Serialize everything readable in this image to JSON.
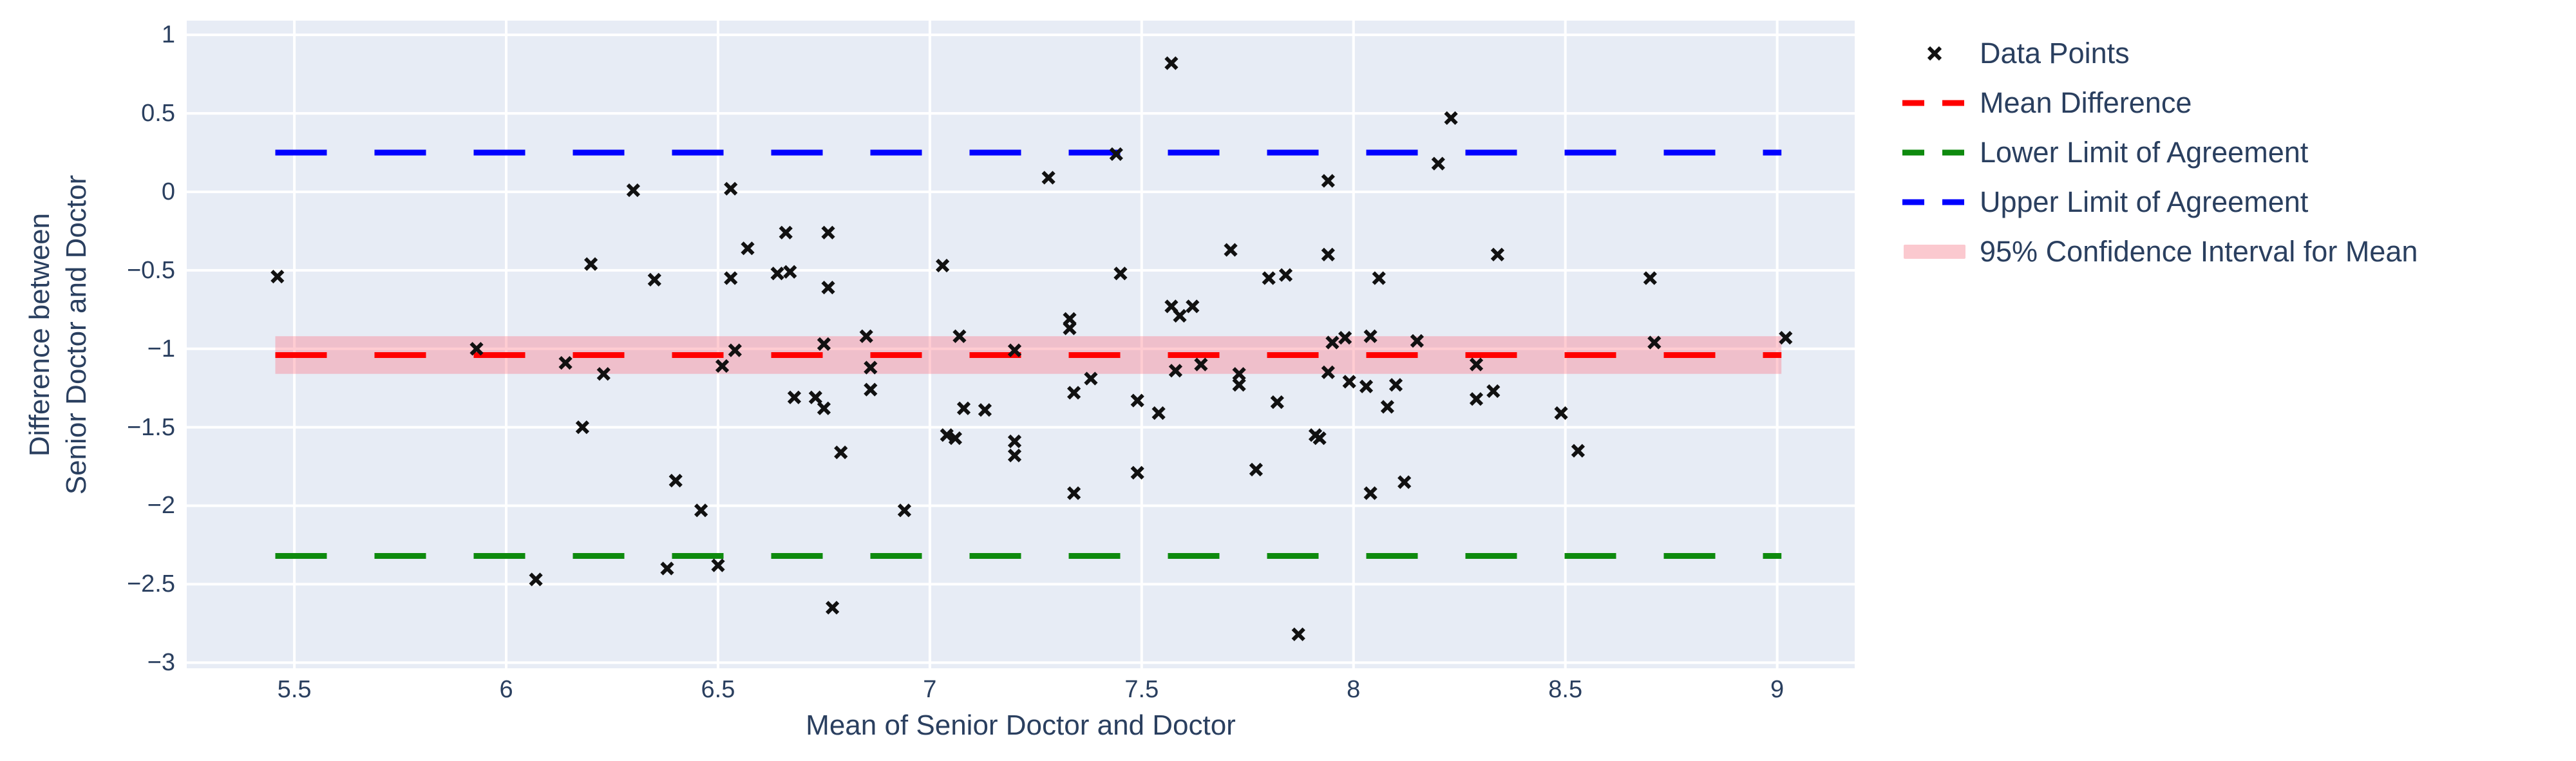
{
  "x_axis": {
    "title": "Mean of Senior Doctor and Doctor",
    "ticks": [
      {
        "label": "5.5",
        "value": 5.5
      },
      {
        "label": "6",
        "value": 6
      },
      {
        "label": "6.5",
        "value": 6.5
      },
      {
        "label": "7",
        "value": 7
      },
      {
        "label": "7.5",
        "value": 7.5
      },
      {
        "label": "8",
        "value": 8
      },
      {
        "label": "8.5",
        "value": 8.5
      },
      {
        "label": "9",
        "value": 9
      }
    ]
  },
  "y_axis": {
    "title_line1": "Difference between",
    "title_line2": "Senior Doctor and Doctor",
    "ticks": [
      {
        "label": "1",
        "value": 1
      },
      {
        "label": "0.5",
        "value": 0.5
      },
      {
        "label": "0",
        "value": 0
      },
      {
        "label": "−0.5",
        "value": -0.5
      },
      {
        "label": "−1",
        "value": -1
      },
      {
        "label": "−1.5",
        "value": -1.5
      },
      {
        "label": "−2",
        "value": -2
      },
      {
        "label": "−2.5",
        "value": -2.5
      },
      {
        "label": "−3",
        "value": -3
      }
    ]
  },
  "legend": {
    "position": "right",
    "items": [
      {
        "label": "Data Points",
        "type": "marker-x",
        "color": "#111111"
      },
      {
        "label": "Mean Difference",
        "type": "dash",
        "color": "#FF0000"
      },
      {
        "label": "Lower Limit of Agreement",
        "type": "dash",
        "color": "#0E8A0E"
      },
      {
        "label": "Upper Limit of Agreement",
        "type": "dash",
        "color": "#0000FF"
      },
      {
        "label": "95% Confidence Interval for Mean",
        "type": "band",
        "color": "#FBC9CF"
      }
    ]
  },
  "colors": {
    "plot_background": "#E7ECF5",
    "gridline": "#FFFFFF",
    "marker": "#111111",
    "mean_line": "#FF0000",
    "lower_loa_line": "#0E8A0E",
    "upper_loa_line": "#0000FF",
    "ci_band_fill": "rgba(255,110,125,0.35)",
    "text": "#2a3f5f"
  },
  "chart_data": {
    "type": "scatter",
    "title": "",
    "xlabel": "Mean of Senior Doctor and Doctor",
    "ylabel": "Difference between Senior Doctor and Doctor",
    "x_range": [
      5.246,
      9.183
    ],
    "y_range": [
      -3.036,
      1.091
    ],
    "grid": true,
    "legend_position": "right",
    "reference_lines": {
      "mean_difference": -1.04,
      "upper_limit_of_agreement": 0.25,
      "lower_limit_of_agreement": -2.32
    },
    "ci_band": {
      "lower": -1.16,
      "upper": -0.92
    },
    "line_x_extent": [
      5.455,
      9.01
    ],
    "points": [
      [
        5.46,
        -0.54
      ],
      [
        5.93,
        -1.0
      ],
      [
        6.07,
        -2.47
      ],
      [
        6.14,
        -1.09
      ],
      [
        6.18,
        -1.5
      ],
      [
        6.2,
        -0.46
      ],
      [
        6.23,
        -1.16
      ],
      [
        6.3,
        0.01
      ],
      [
        6.35,
        -0.56
      ],
      [
        6.38,
        -2.4
      ],
      [
        6.4,
        -1.84
      ],
      [
        6.46,
        -2.03
      ],
      [
        6.5,
        -2.38
      ],
      [
        6.51,
        -1.11
      ],
      [
        6.53,
        0.02
      ],
      [
        6.53,
        -0.55
      ],
      [
        6.54,
        -1.01
      ],
      [
        6.57,
        -0.36
      ],
      [
        6.64,
        -0.52
      ],
      [
        6.66,
        -0.26
      ],
      [
        6.67,
        -0.51
      ],
      [
        6.68,
        -1.31
      ],
      [
        6.73,
        -1.31
      ],
      [
        6.75,
        -0.97
      ],
      [
        6.75,
        -1.38
      ],
      [
        6.76,
        -0.26
      ],
      [
        6.76,
        -0.61
      ],
      [
        6.77,
        -2.65
      ],
      [
        6.79,
        -1.66
      ],
      [
        6.85,
        -0.92
      ],
      [
        6.86,
        -1.12
      ],
      [
        6.86,
        -1.26
      ],
      [
        6.94,
        -2.03
      ],
      [
        7.03,
        -0.47
      ],
      [
        7.04,
        -1.55
      ],
      [
        7.06,
        -1.57
      ],
      [
        7.07,
        -0.92
      ],
      [
        7.08,
        -1.38
      ],
      [
        7.13,
        -1.39
      ],
      [
        7.2,
        -1.01
      ],
      [
        7.2,
        -1.59
      ],
      [
        7.2,
        -1.68
      ],
      [
        7.28,
        0.09
      ],
      [
        7.33,
        -0.81
      ],
      [
        7.33,
        -0.87
      ],
      [
        7.34,
        -1.28
      ],
      [
        7.34,
        -1.92
      ],
      [
        7.38,
        -1.19
      ],
      [
        7.44,
        0.24
      ],
      [
        7.45,
        -0.52
      ],
      [
        7.49,
        -1.33
      ],
      [
        7.49,
        -1.79
      ],
      [
        7.54,
        -1.41
      ],
      [
        7.57,
        0.82
      ],
      [
        7.57,
        -0.73
      ],
      [
        7.59,
        -0.79
      ],
      [
        7.62,
        -0.73
      ],
      [
        7.58,
        -1.14
      ],
      [
        7.64,
        -1.1
      ],
      [
        7.71,
        -0.37
      ],
      [
        7.73,
        -1.16
      ],
      [
        7.73,
        -1.23
      ],
      [
        7.77,
        -1.77
      ],
      [
        7.8,
        -0.55
      ],
      [
        7.82,
        -1.34
      ],
      [
        7.84,
        -0.53
      ],
      [
        7.87,
        -2.82
      ],
      [
        7.91,
        -1.55
      ],
      [
        7.92,
        -1.57
      ],
      [
        7.94,
        0.07
      ],
      [
        7.94,
        -0.4
      ],
      [
        7.95,
        -0.96
      ],
      [
        7.94,
        -1.15
      ],
      [
        7.98,
        -0.93
      ],
      [
        7.99,
        -1.21
      ],
      [
        8.03,
        -1.24
      ],
      [
        8.04,
        -0.92
      ],
      [
        8.04,
        -1.92
      ],
      [
        8.06,
        -0.55
      ],
      [
        8.08,
        -1.37
      ],
      [
        8.1,
        -1.23
      ],
      [
        8.12,
        -1.85
      ],
      [
        8.15,
        -0.95
      ],
      [
        8.2,
        0.18
      ],
      [
        8.23,
        0.47
      ],
      [
        8.29,
        -1.1
      ],
      [
        8.29,
        -1.32
      ],
      [
        8.33,
        -1.27
      ],
      [
        8.34,
        -0.4
      ],
      [
        8.49,
        -1.41
      ],
      [
        8.53,
        -1.65
      ],
      [
        8.7,
        -0.55
      ],
      [
        8.71,
        -0.96
      ],
      [
        9.02,
        -0.93
      ]
    ]
  }
}
